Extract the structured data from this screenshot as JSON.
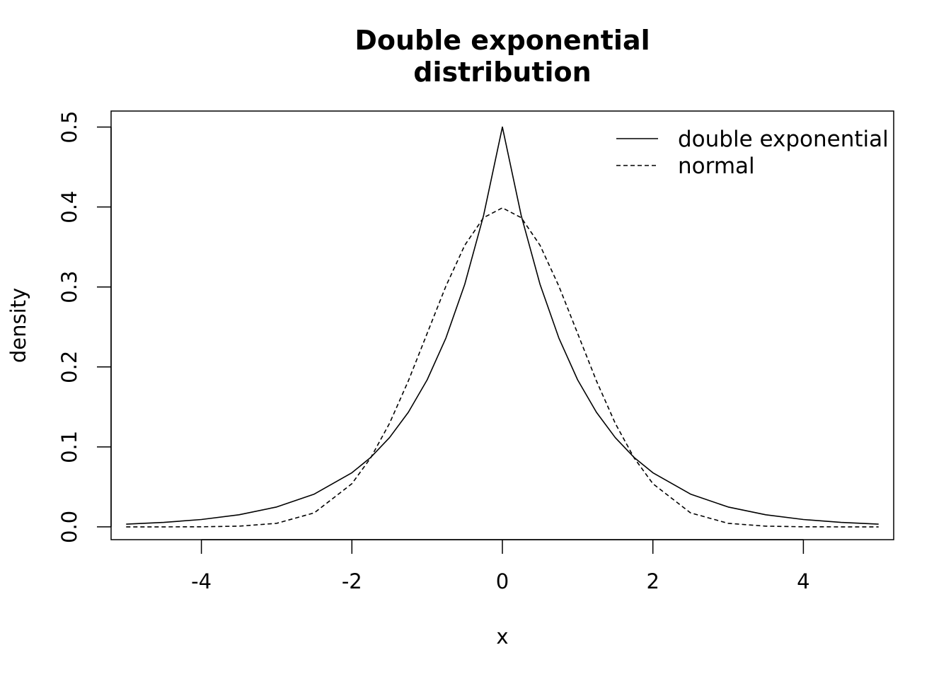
{
  "chart_data": {
    "type": "line",
    "title": [
      "Double exponential",
      "distribution"
    ],
    "xlabel": "x",
    "ylabel": "density",
    "xlim": [
      -5.2,
      5.2
    ],
    "ylim": [
      -0.016,
      0.52
    ],
    "xticks": [
      -4,
      -2,
      0,
      2,
      4
    ],
    "xtick_labels": [
      "-4",
      "-2",
      "0",
      "2",
      "4"
    ],
    "yticks": [
      0.0,
      0.1,
      0.2,
      0.3,
      0.4,
      0.5
    ],
    "ytick_labels": [
      "0.0",
      "0.1",
      "0.2",
      "0.3",
      "0.4",
      "0.5"
    ],
    "grid": false,
    "legend_position": "top-right",
    "x": [
      -5.0,
      -4.5,
      -4.0,
      -3.5,
      -3.0,
      -2.5,
      -2.0,
      -1.75,
      -1.5,
      -1.25,
      -1.0,
      -0.75,
      -0.5,
      -0.25,
      0.0,
      0.25,
      0.5,
      0.75,
      1.0,
      1.25,
      1.5,
      1.75,
      2.0,
      2.5,
      3.0,
      3.5,
      4.0,
      4.5,
      5.0
    ],
    "series": [
      {
        "name": "double exponential",
        "line_style": "solid",
        "color": "#000000",
        "values": [
          0.0034,
          0.0056,
          0.0092,
          0.0151,
          0.0249,
          0.041,
          0.0677,
          0.0869,
          0.1116,
          0.1433,
          0.1839,
          0.2362,
          0.3033,
          0.3894,
          0.5,
          0.3894,
          0.3033,
          0.2362,
          0.1839,
          0.1433,
          0.1116,
          0.0869,
          0.0677,
          0.041,
          0.0249,
          0.0151,
          0.0092,
          0.0056,
          0.0034
        ]
      },
      {
        "name": "normal",
        "line_style": "dashed",
        "color": "#000000",
        "values": [
          0.0,
          0.0,
          0.0001,
          0.0009,
          0.0044,
          0.0175,
          0.054,
          0.0863,
          0.1295,
          0.1826,
          0.242,
          0.3011,
          0.3521,
          0.3867,
          0.3989,
          0.3867,
          0.3521,
          0.3011,
          0.242,
          0.1826,
          0.1295,
          0.0863,
          0.054,
          0.0175,
          0.0044,
          0.0009,
          0.0001,
          0.0,
          0.0
        ]
      }
    ]
  }
}
